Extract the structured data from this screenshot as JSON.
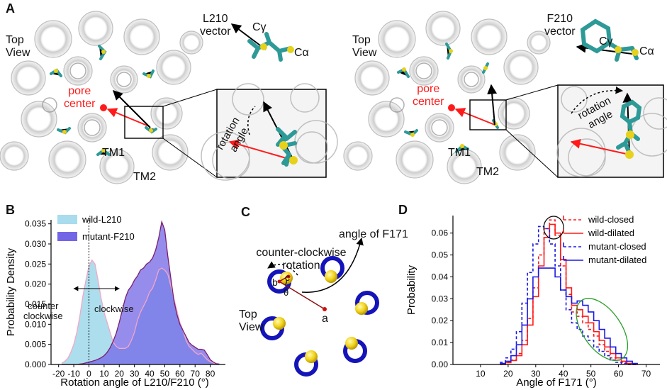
{
  "panels": {
    "A": {
      "letter": "A",
      "left": {
        "top_view": [
          "Top",
          "View"
        ],
        "vector": [
          "L210",
          "vector"
        ],
        "c_gamma": "Cγ",
        "c_alpha": "Cα",
        "pore": [
          "pore",
          "center"
        ],
        "tm1": "TM1",
        "tm2": "TM2",
        "rotation": [
          "rotation",
          "angle"
        ]
      },
      "right": {
        "top_view": [
          "Top",
          "View"
        ],
        "vector": [
          "F210",
          "vector"
        ],
        "c_gamma": "Cγ",
        "c_alpha": "Cα",
        "pore": [
          "pore",
          "center"
        ],
        "tm1": "TM1",
        "tm2": "TM2",
        "rotation": [
          "rotation",
          "angle"
        ]
      }
    },
    "B": {
      "letter": "B",
      "chart_data": {
        "type": "area",
        "xlabel": "Rotation angle of L210/F210 (°)",
        "ylabel": "Probability Density",
        "xlim": [
          -25,
          90
        ],
        "ylim": [
          0,
          0.036
        ],
        "xticks": [
          "-20",
          "-10",
          "0",
          "10",
          "20",
          "30",
          "40",
          "50",
          "60",
          "70",
          "80"
        ],
        "yticks": [
          "0.000",
          "0.005",
          "0.010",
          "0.015",
          "0.020",
          "0.025",
          "0.030",
          "0.035"
        ],
        "annotations": [
          "counter",
          "clockwise",
          "clockwise"
        ],
        "legend_position": "top-left",
        "series": [
          {
            "name": "wild-L210",
            "color": "#a9dcec",
            "line": "#f2a7c5",
            "x": [
              -18,
              -16,
              -14,
              -12,
              -10,
              -8,
              -6,
              -4,
              -2,
              0,
              2,
              4,
              6,
              8,
              10,
              12,
              14,
              16,
              18,
              20,
              22,
              24,
              26,
              28,
              30,
              32,
              34,
              36,
              38,
              40,
              42,
              44,
              46,
              48,
              50,
              52,
              54,
              56,
              58,
              60,
              62,
              64,
              66,
              68,
              70,
              72,
              74,
              76,
              78,
              80,
              82,
              84,
              86
            ],
            "y": [
              0.0003,
              0.0008,
              0.0015,
              0.003,
              0.005,
              0.008,
              0.012,
              0.017,
              0.021,
              0.0245,
              0.026,
              0.025,
              0.021,
              0.0165,
              0.013,
              0.0105,
              0.008,
              0.0055,
              0.0045,
              0.004,
              0.004,
              0.004,
              0.0045,
              0.006,
              0.008,
              0.011,
              0.013,
              0.0145,
              0.016,
              0.018,
              0.019,
              0.021,
              0.0235,
              0.024,
              0.0235,
              0.0225,
              0.0195,
              0.0165,
              0.0135,
              0.0105,
              0.0085,
              0.006,
              0.0045,
              0.0038,
              0.003,
              0.0025,
              0.0028,
              0.002,
              0.0012,
              0.0007,
              0.0004,
              0.0002,
              0.0001
            ]
          },
          {
            "name": "mutant-F210",
            "color": "#7366e6",
            "line": "#7a1f6e",
            "x": [
              -18,
              -16,
              -14,
              -12,
              -10,
              -8,
              -6,
              -4,
              -2,
              0,
              2,
              4,
              6,
              8,
              10,
              12,
              14,
              16,
              18,
              20,
              22,
              24,
              26,
              28,
              30,
              32,
              34,
              36,
              38,
              40,
              42,
              44,
              46,
              48,
              50,
              52,
              54,
              56,
              58,
              60,
              62,
              64,
              66,
              68,
              70,
              72,
              74,
              76,
              78,
              80,
              82,
              84,
              86
            ],
            "y": [
              0,
              0,
              0,
              0,
              0,
              0,
              0.0001,
              0.0002,
              0.0004,
              0.0006,
              0.0008,
              0.001,
              0.0013,
              0.0017,
              0.0022,
              0.003,
              0.0042,
              0.0058,
              0.0078,
              0.0105,
              0.0135,
              0.0165,
              0.0185,
              0.0195,
              0.021,
              0.022,
              0.0235,
              0.024,
              0.025,
              0.0255,
              0.0265,
              0.0285,
              0.0315,
              0.0355,
              0.0335,
              0.027,
              0.0215,
              0.016,
              0.0125,
              0.01,
              0.0085,
              0.007,
              0.0055,
              0.0048,
              0.0043,
              0.0038,
              0.0038,
              0.0036,
              0.0025,
              0.0012,
              0.0006,
              0.0002,
              0.0001
            ]
          }
        ]
      }
    },
    "C": {
      "letter": "C",
      "title": "angle of F171",
      "ccw": [
        "counter-clockwise",
        "rotation"
      ],
      "top_view": [
        "Top",
        "View"
      ],
      "point_b": "b",
      "point_c": "c",
      "theta": "θ",
      "point_a": "a"
    },
    "D": {
      "letter": "D",
      "chart_data": {
        "type": "line",
        "xlabel": "Angle of F171 (°)",
        "ylabel": "Probability",
        "xlim": [
          0,
          75
        ],
        "ylim": [
          0,
          0.068
        ],
        "xticks": [
          "10",
          "20",
          "30",
          "40",
          "50",
          "60",
          "70"
        ],
        "yticks": [
          "0.00",
          "0.01",
          "0.02",
          "0.03",
          "0.04",
          "0.05",
          "0.06"
        ],
        "legend_position": "top-right",
        "x": [
          18,
          20,
          22,
          24,
          26,
          28,
          30,
          32,
          34,
          36,
          38,
          40,
          42,
          44,
          46,
          48,
          50,
          52,
          54,
          56,
          58,
          60,
          62,
          64,
          66
        ],
        "series": [
          {
            "name": "wild-closed",
            "color": "#ff1a1a",
            "dash": true,
            "y": [
              0,
              0.001,
              0.002,
              0.005,
              0.011,
              0.021,
              0.035,
              0.05,
              0.062,
              0.066,
              0.059,
              0.045,
              0.032,
              0.024,
              0.022,
              0.019,
              0.016,
              0.013,
              0.009,
              0.006,
              0.003,
              0.002,
              0.001,
              0,
              0
            ]
          },
          {
            "name": "wild-dilated",
            "color": "#ff1a1a",
            "dash": false,
            "y": [
              0,
              0.0008,
              0.0018,
              0.004,
              0.009,
              0.018,
              0.031,
              0.045,
              0.058,
              0.064,
              0.06,
              0.048,
              0.035,
              0.027,
              0.025,
              0.022,
              0.019,
              0.015,
              0.011,
              0.008,
              0.005,
              0.003,
              0.0015,
              0.0005,
              0
            ]
          },
          {
            "name": "mutant-closed",
            "color": "#1a1ae6",
            "dash": true,
            "y": [
              0.001,
              0.003,
              0.007,
              0.015,
              0.028,
              0.042,
              0.055,
              0.063,
              0.062,
              0.055,
              0.045,
              0.034,
              0.025,
              0.019,
              0.016,
              0.013,
              0.011,
              0.008,
              0.006,
              0.004,
              0.002,
              0.001,
              0.0005,
              0,
              0
            ]
          },
          {
            "name": "mutant-dilated",
            "color": "#1a1ae6",
            "dash": false,
            "y": [
              0.0005,
              0.0015,
              0.004,
              0.009,
              0.018,
              0.03,
              0.04,
              0.044,
              0.044,
              0.044,
              0.04,
              0.034,
              0.031,
              0.028,
              0.029,
              0.027,
              0.024,
              0.02,
              0.016,
              0.012,
              0.008,
              0.005,
              0.003,
              0.0015,
              0.0005
            ]
          }
        ]
      }
    }
  }
}
